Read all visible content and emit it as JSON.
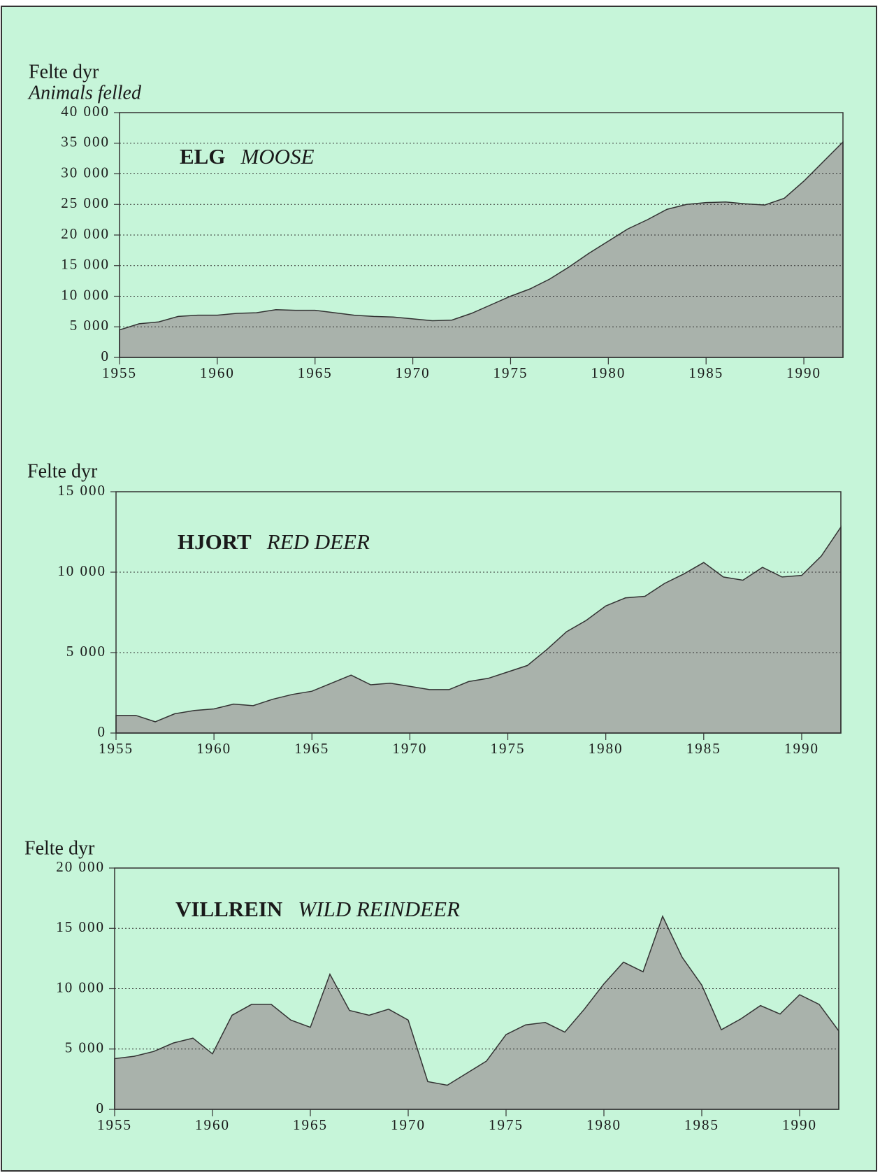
{
  "chart_data": [
    {
      "type": "area",
      "ylabel": "Felte dyr",
      "ylabel_en": "Animals felled",
      "title": "ELG",
      "title_en": "MOOSE",
      "x": [
        1955,
        1956,
        1957,
        1958,
        1959,
        1960,
        1961,
        1962,
        1963,
        1964,
        1965,
        1966,
        1967,
        1968,
        1969,
        1970,
        1971,
        1972,
        1973,
        1974,
        1975,
        1976,
        1977,
        1978,
        1979,
        1980,
        1981,
        1982,
        1983,
        1984,
        1985,
        1986,
        1987,
        1988,
        1989,
        1990,
        1991,
        1992
      ],
      "values": [
        4500,
        5500,
        5800,
        6700,
        6900,
        6900,
        7200,
        7300,
        7800,
        7700,
        7700,
        7300,
        6900,
        6700,
        6600,
        6300,
        6000,
        6100,
        7200,
        8600,
        10000,
        11200,
        12800,
        14800,
        17000,
        19000,
        21000,
        22500,
        24200,
        25000,
        25300,
        25400,
        25100,
        24900,
        26000,
        28800,
        32000,
        35200
      ],
      "xlim": [
        1955,
        1992
      ],
      "xticks": [
        1955,
        1960,
        1965,
        1970,
        1975,
        1980,
        1985,
        1990
      ],
      "ylim": [
        0,
        40000
      ],
      "yticks": [
        0,
        {
          "value": 5000,
          "label": "5 000"
        },
        {
          "value": 10000,
          "label": "10 000"
        },
        {
          "value": 15000,
          "label": "15 000"
        },
        {
          "value": 20000,
          "label": "20 000"
        },
        {
          "value": 25000,
          "label": "25 000"
        },
        {
          "value": 30000,
          "label": "30 000"
        },
        {
          "value": 35000,
          "label": "35 000"
        },
        {
          "value": 40000,
          "label": "40 000"
        }
      ],
      "grid": true,
      "color": "#a9b2ab"
    },
    {
      "type": "area",
      "ylabel": "Felte dyr",
      "title": "HJORT",
      "title_en": "RED DEER",
      "x": [
        1955,
        1956,
        1957,
        1958,
        1959,
        1960,
        1961,
        1962,
        1963,
        1964,
        1965,
        1966,
        1967,
        1968,
        1969,
        1970,
        1971,
        1972,
        1973,
        1974,
        1975,
        1976,
        1977,
        1978,
        1979,
        1980,
        1981,
        1982,
        1983,
        1984,
        1985,
        1986,
        1987,
        1988,
        1989,
        1990,
        1991,
        1992
      ],
      "values": [
        1100,
        1100,
        700,
        1200,
        1400,
        1500,
        1800,
        1700,
        2100,
        2400,
        2600,
        3100,
        3600,
        3000,
        3100,
        2900,
        2700,
        2700,
        3200,
        3400,
        3800,
        4200,
        5200,
        6300,
        7000,
        7900,
        8400,
        8500,
        9300,
        9900,
        10600,
        9700,
        9500,
        10300,
        9700,
        9800,
        11000,
        12800
      ],
      "xlim": [
        1955,
        1992
      ],
      "xticks": [
        1955,
        1960,
        1965,
        1970,
        1975,
        1980,
        1985,
        1990
      ],
      "ylim": [
        0,
        15000
      ],
      "yticks": [
        0,
        {
          "value": 5000,
          "label": "5 000"
        },
        {
          "value": 10000,
          "label": "10 000"
        },
        {
          "value": 15000,
          "label": "15 000"
        }
      ],
      "grid": true,
      "color": "#a9b2ab"
    },
    {
      "type": "area",
      "ylabel": "Felte dyr",
      "title": "VILLREIN",
      "title_en": "WILD REINDEER",
      "x": [
        1955,
        1956,
        1957,
        1958,
        1959,
        1960,
        1961,
        1962,
        1963,
        1964,
        1965,
        1966,
        1967,
        1968,
        1969,
        1970,
        1971,
        1972,
        1973,
        1974,
        1975,
        1976,
        1977,
        1978,
        1979,
        1980,
        1981,
        1982,
        1983,
        1984,
        1985,
        1986,
        1987,
        1988,
        1989,
        1990,
        1991,
        1992
      ],
      "values": [
        4200,
        4400,
        4800,
        5500,
        5900,
        4600,
        7800,
        8700,
        8700,
        7400,
        6800,
        11200,
        8200,
        7800,
        8300,
        7400,
        2300,
        2000,
        3000,
        4000,
        6200,
        7000,
        7200,
        6400,
        8300,
        10400,
        12200,
        11400,
        16000,
        12600,
        10300,
        6600,
        7500,
        8600,
        7900,
        9500,
        8700,
        6500
      ],
      "xlim": [
        1955,
        1992
      ],
      "xticks": [
        1955,
        1960,
        1965,
        1970,
        1975,
        1980,
        1985,
        1990
      ],
      "ylim": [
        0,
        20000
      ],
      "yticks": [
        0,
        {
          "value": 5000,
          "label": "5 000"
        },
        {
          "value": 10000,
          "label": "10 000"
        },
        {
          "value": 15000,
          "label": "15 000"
        },
        {
          "value": 20000,
          "label": "20 000"
        }
      ],
      "grid": true,
      "color": "#a9b2ab"
    }
  ]
}
